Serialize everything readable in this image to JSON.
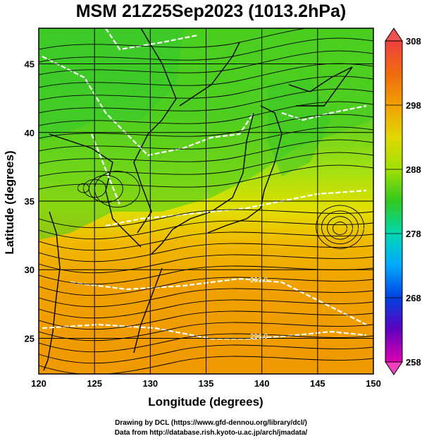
{
  "title": "MSM 21Z25Sep2023 (1013.2hPa)",
  "axes": {
    "xlabel": "Longitude (degrees)",
    "ylabel": "Latitude  (degrees)",
    "x_ticks": [
      "120",
      "125",
      "130",
      "135",
      "140",
      "145",
      "150"
    ],
    "y_ticks": [
      "25",
      "30",
      "35",
      "40",
      "45"
    ]
  },
  "colorbar": {
    "ticks": [
      "308",
      "298",
      "288",
      "278",
      "268",
      "258"
    ],
    "colors": [
      "#e8006e",
      "#e83080",
      "#b000b8",
      "#3010c0",
      "#0060ff",
      "#00b0ff",
      "#00e0d0",
      "#10d070",
      "#40c800",
      "#90e000",
      "#d8e800",
      "#f0d000",
      "#f0a000",
      "#f06020",
      "#f03010",
      "#ff6060"
    ]
  },
  "isolines": [
    {
      "label": "292.0"
    },
    {
      "label": "296.0"
    }
  ],
  "credits": {
    "line1": "Drawing by DCL (https://www.gfd-dennou.org/library/dcl/)",
    "line2": "Data from http://database.rish.kyoto-u.ac.jp/arch/jmadata/"
  },
  "chart_data": {
    "type": "heatmap",
    "title": "MSM 21Z25Sep2023 (1013.2hPa)",
    "xlabel": "Longitude (degrees)",
    "ylabel": "Latitude  (degrees)",
    "xlim": [
      120,
      150
    ],
    "ylim": [
      22.4,
      47.6
    ],
    "colorbar_range": [
      258,
      308
    ],
    "colorbar_units_ticks": [
      258,
      268,
      278,
      288,
      298,
      308
    ],
    "grid": true
  }
}
